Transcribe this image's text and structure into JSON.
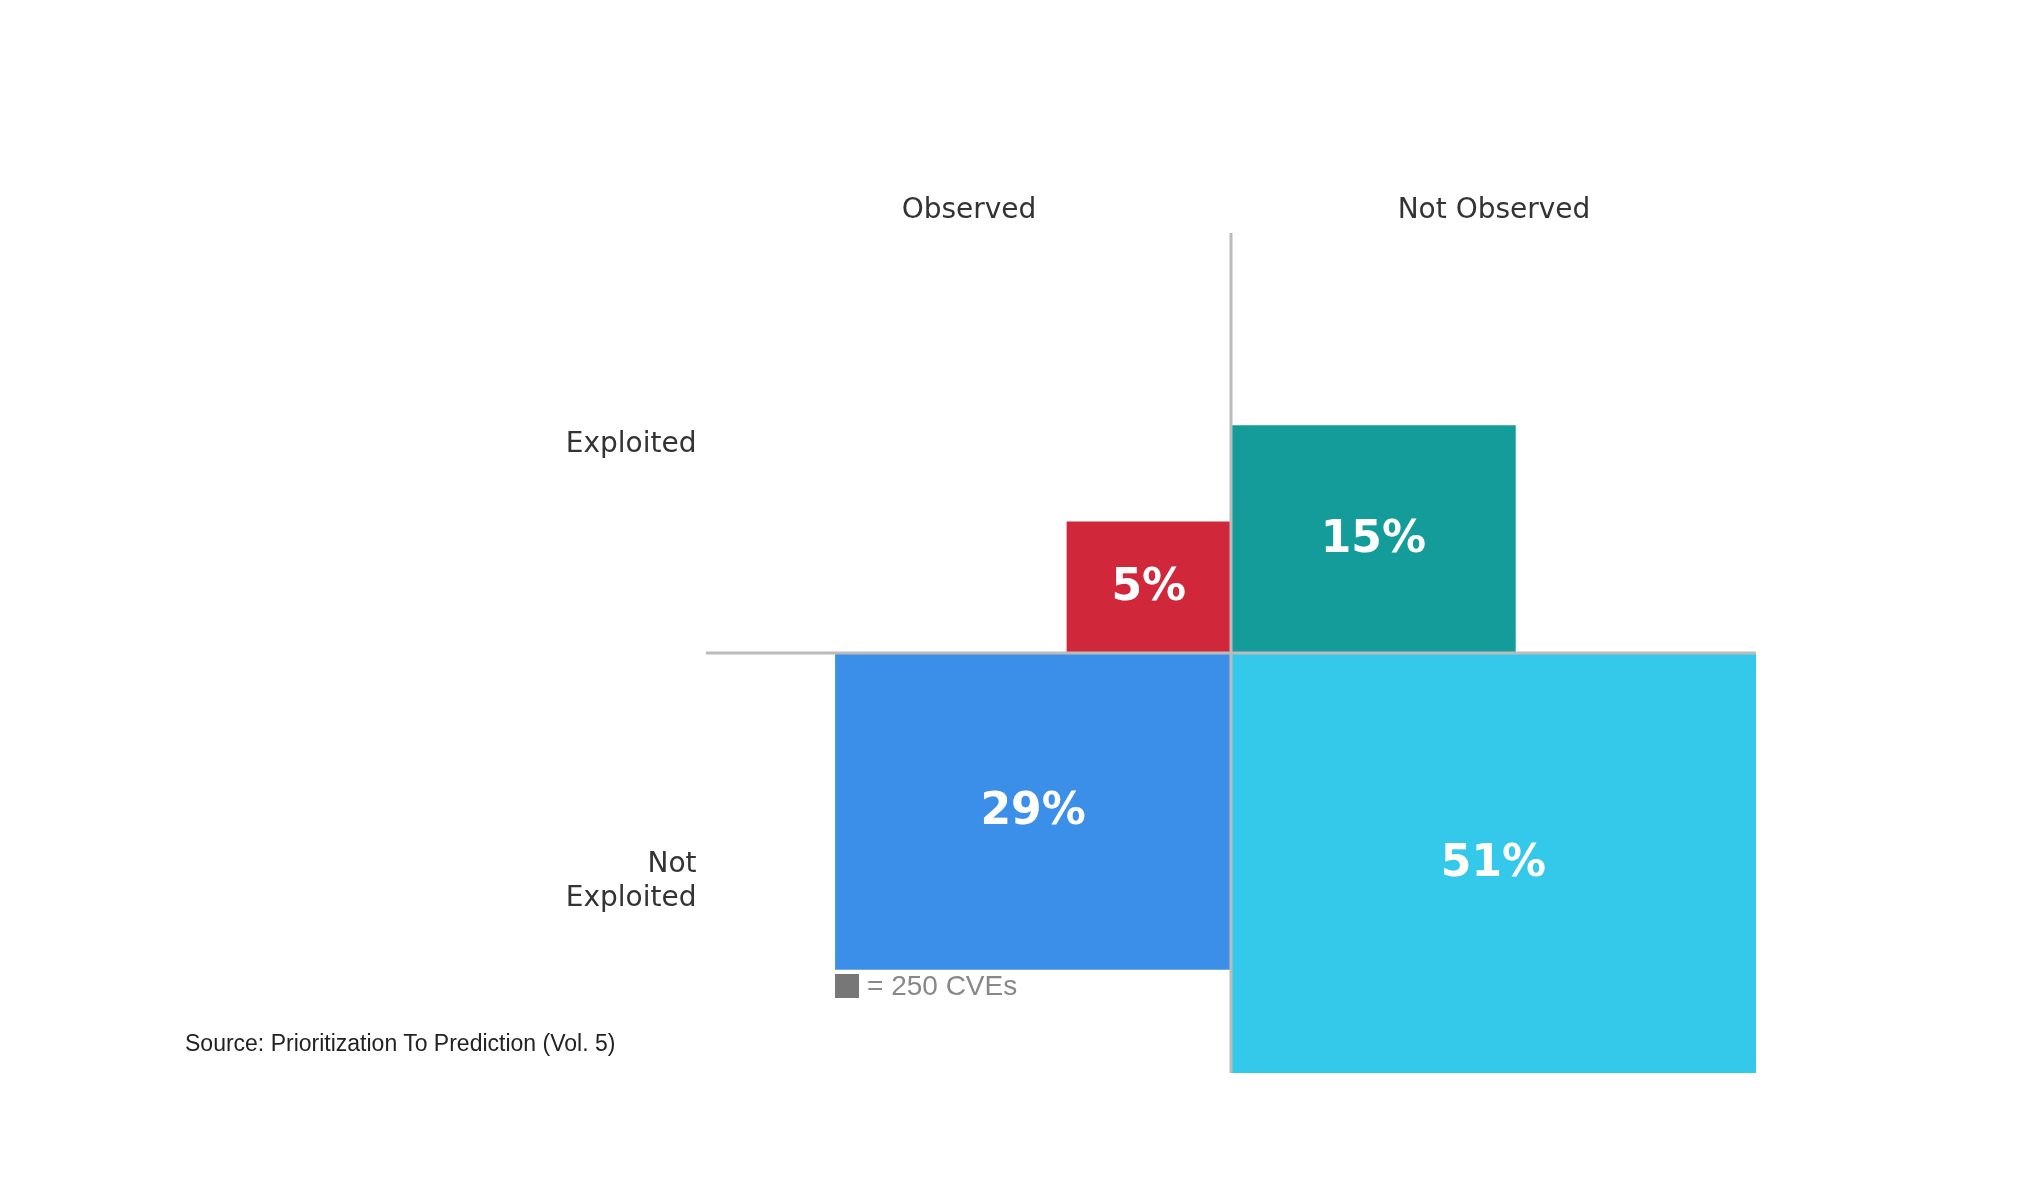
{
  "chart_data": {
    "type": "heatmap",
    "categories": [
      "Observed",
      "Not Observed"
    ],
    "y_categories": [
      "Exploited",
      "Not Exploited"
    ],
    "cells": [
      [
        5,
        15
      ],
      [
        29,
        51
      ]
    ],
    "cell_labels": [
      [
        "5%",
        "15%"
      ],
      [
        "29%",
        "51%"
      ]
    ],
    "colors": [
      "#d0283a",
      "#149c9a",
      "#3b8fe8",
      "#34c8ea"
    ],
    "annotations": [
      "= 250 CVEs",
      "Source: Prioritization To Prediction (Vol. 5)"
    ]
  }
}
